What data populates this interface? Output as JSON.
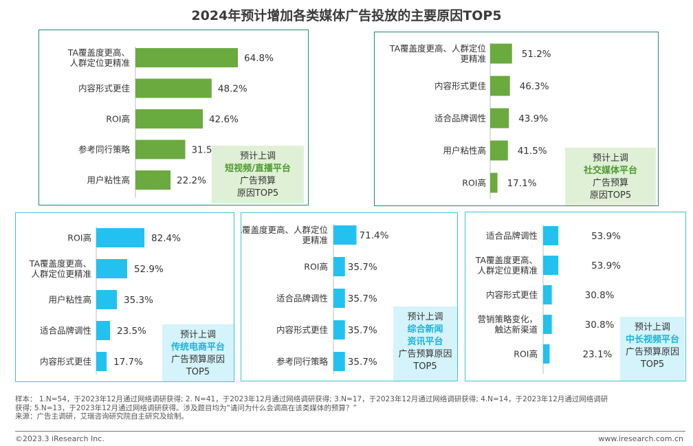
{
  "title": "2024年预计增加各类媒体广告投放的主要原因TOP5",
  "colors": {
    "green": "#6aaa3f",
    "blue": "#22c1ef",
    "green_border": "#1f8a5e",
    "blue_border": "#3cc3d6",
    "green_callout_bg": "#dff0d6",
    "blue_callout_bg": "#d4f3fa"
  },
  "callouts": [
    {
      "line1": "预计上调",
      "platform": [
        "短视频/直播平台"
      ],
      "rest": [
        "广告预算",
        "原因TOP5"
      ]
    },
    {
      "line1": "预计上调",
      "platform": [
        "社交媒体平台"
      ],
      "rest": [
        "广告预算",
        "原因TOP5"
      ]
    },
    {
      "line1": "预计上调",
      "platform": [
        "传统电商平台"
      ],
      "rest": [
        "广告预算原因",
        "TOP5"
      ]
    },
    {
      "line1": "预计上调",
      "platform": [
        "综合新闻",
        "资讯平台"
      ],
      "rest": [
        "广告预算原因",
        "TOP5"
      ]
    },
    {
      "line1": "预计上调",
      "platform": [
        "中长视频平台"
      ],
      "rest": [
        "广告预算原因",
        "TOP5"
      ]
    }
  ],
  "chart_data": [
    {
      "type": "bar",
      "orientation": "horizontal",
      "title": "",
      "xlim": [
        0,
        100
      ],
      "categories": [
        [
          "TA覆盖度更高、",
          "人群定位更精准"
        ],
        [
          "内容形式更佳"
        ],
        [
          "ROI高"
        ],
        [
          "参考同行策略"
        ],
        [
          "用户粘性高"
        ]
      ],
      "values": [
        64.8,
        48.2,
        42.6,
        31.5,
        22.2
      ],
      "value_labels": [
        "64.8%",
        "48.2%",
        "42.6%",
        "31.5%",
        "22.2%"
      ]
    },
    {
      "type": "bar",
      "orientation": "horizontal",
      "title": "",
      "xlim": [
        0,
        100
      ],
      "categories": [
        [
          "TA覆盖度更高、人群定位",
          "更精准"
        ],
        [
          "内容形式更佳"
        ],
        [
          "适合品牌调性"
        ],
        [
          "用户粘性高"
        ],
        [
          "ROI高"
        ]
      ],
      "values": [
        51.2,
        46.3,
        43.9,
        41.5,
        17.1
      ],
      "value_labels": [
        "51.2%",
        "46.3%",
        "43.9%",
        "41.5%",
        "17.1%"
      ]
    },
    {
      "type": "bar",
      "orientation": "horizontal",
      "title": "",
      "xlim": [
        0,
        100
      ],
      "categories": [
        [
          "ROI高"
        ],
        [
          "TA覆盖度更高、",
          "人群定位更精准"
        ],
        [
          "用户粘性高"
        ],
        [
          "适合品牌调性"
        ],
        [
          "内容形式更佳"
        ]
      ],
      "values": [
        82.4,
        52.9,
        35.3,
        23.5,
        17.7
      ],
      "value_labels": [
        "82.4%",
        "52.9%",
        "35.3%",
        "23.5%",
        "17.7%"
      ]
    },
    {
      "type": "bar",
      "orientation": "horizontal",
      "title": "",
      "xlim": [
        0,
        100
      ],
      "categories": [
        [
          "TA覆盖度更高、人群定位",
          "更精准"
        ],
        [
          "ROI高"
        ],
        [
          "适合品牌调性"
        ],
        [
          "内容形式更佳"
        ],
        [
          "参考同行策略"
        ]
      ],
      "values": [
        71.4,
        35.7,
        35.7,
        35.7,
        35.7
      ],
      "value_labels": [
        "71.4%",
        "35.7%",
        "35.7%",
        "35.7%",
        "35.7%"
      ]
    },
    {
      "type": "bar",
      "orientation": "horizontal",
      "title": "",
      "xlim": [
        0,
        100
      ],
      "categories": [
        [
          "适合品牌调性"
        ],
        [
          "TA覆盖度更高、",
          "人群定位更精准"
        ],
        [
          "内容形式更佳"
        ],
        [
          "营销策略变化，",
          "触达新渠道"
        ],
        [
          "ROI高"
        ]
      ],
      "values": [
        53.9,
        53.9,
        30.8,
        30.8,
        23.1
      ],
      "value_labels": [
        "53.9%",
        "53.9%",
        "30.8%",
        "30.8%",
        "23.1%"
      ]
    }
  ],
  "footnote": {
    "sample_line1": "样本： 1.N=54，于2023年12月通过网络调研获得; 2. N=41，于2023年12月通过网络调研获得; 3.N=17，于2023年12月通过网络调研获得; 4.N=14，于2023年12月通过网络调研",
    "sample_line2": "获得; 5.N=13，于2023年12月通过网络调研获得。涉及题目均为“请问为什么会调高在该类媒体的预算？”",
    "source": "来源：广告主调研，艾瑞咨询研究院自主研究及绘制。"
  },
  "copyright": "©2023.3 iResearch Inc.",
  "website": "www.iresearch.com.cn"
}
